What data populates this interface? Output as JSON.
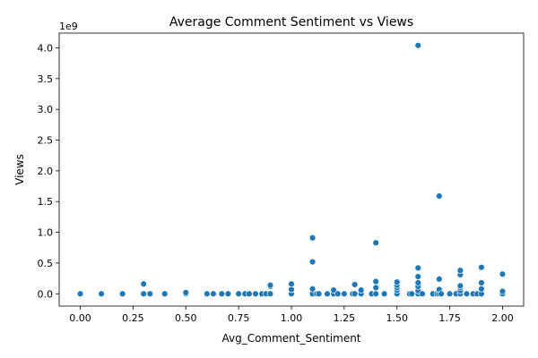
{
  "chart_data": {
    "type": "scatter",
    "title": "Average Comment Sentiment vs Views",
    "xlabel": "Avg_Comment_Sentiment",
    "ylabel": "Views",
    "y_offset_label": "1e9",
    "xlim": [
      -0.1,
      2.1
    ],
    "ylim": [
      -0.2,
      4.24
    ],
    "y_scale_factor": 1000000000,
    "grid": false,
    "legend": "none",
    "colors": {
      "points": "#1f77b4"
    },
    "x_ticks": [
      {
        "value": 0.0,
        "label": "0.00"
      },
      {
        "value": 0.25,
        "label": "0.25"
      },
      {
        "value": 0.5,
        "label": "0.50"
      },
      {
        "value": 0.75,
        "label": "0.75"
      },
      {
        "value": 1.0,
        "label": "1.00"
      },
      {
        "value": 1.25,
        "label": "1.25"
      },
      {
        "value": 1.5,
        "label": "1.50"
      },
      {
        "value": 1.75,
        "label": "1.75"
      },
      {
        "value": 2.0,
        "label": "2.00"
      }
    ],
    "y_ticks": [
      {
        "value": 0.0,
        "label": "0.0"
      },
      {
        "value": 0.5,
        "label": "0.5"
      },
      {
        "value": 1.0,
        "label": "1.0"
      },
      {
        "value": 1.5,
        "label": "1.5"
      },
      {
        "value": 2.0,
        "label": "2.0"
      },
      {
        "value": 2.5,
        "label": "2.5"
      },
      {
        "value": 3.0,
        "label": "3.0"
      },
      {
        "value": 3.5,
        "label": "3.5"
      },
      {
        "value": 4.0,
        "label": "4.0"
      }
    ],
    "points": [
      {
        "x": 0.0,
        "y": 0.0
      },
      {
        "x": 0.1,
        "y": 0.0
      },
      {
        "x": 0.2,
        "y": 0.0
      },
      {
        "x": 0.3,
        "y": 0.0
      },
      {
        "x": 0.3,
        "y": 0.16
      },
      {
        "x": 0.33,
        "y": 0.0
      },
      {
        "x": 0.4,
        "y": 0.0
      },
      {
        "x": 0.5,
        "y": 0.0
      },
      {
        "x": 0.5,
        "y": 0.02
      },
      {
        "x": 0.6,
        "y": 0.0
      },
      {
        "x": 0.63,
        "y": 0.0
      },
      {
        "x": 0.67,
        "y": 0.0
      },
      {
        "x": 0.7,
        "y": 0.0
      },
      {
        "x": 0.75,
        "y": 0.0
      },
      {
        "x": 0.78,
        "y": 0.0
      },
      {
        "x": 0.8,
        "y": 0.0
      },
      {
        "x": 0.83,
        "y": 0.0
      },
      {
        "x": 0.86,
        "y": 0.0
      },
      {
        "x": 0.88,
        "y": 0.0
      },
      {
        "x": 0.9,
        "y": 0.0
      },
      {
        "x": 0.9,
        "y": 0.12
      },
      {
        "x": 0.9,
        "y": 0.14
      },
      {
        "x": 1.0,
        "y": 0.0
      },
      {
        "x": 1.0,
        "y": 0.07
      },
      {
        "x": 1.0,
        "y": 0.16
      },
      {
        "x": 1.1,
        "y": 0.0
      },
      {
        "x": 1.1,
        "y": 0.08
      },
      {
        "x": 1.1,
        "y": 0.52
      },
      {
        "x": 1.1,
        "y": 0.91
      },
      {
        "x": 1.12,
        "y": 0.0
      },
      {
        "x": 1.13,
        "y": 0.0
      },
      {
        "x": 1.17,
        "y": 0.0
      },
      {
        "x": 1.2,
        "y": 0.0
      },
      {
        "x": 1.2,
        "y": 0.06
      },
      {
        "x": 1.22,
        "y": 0.0
      },
      {
        "x": 1.25,
        "y": 0.0
      },
      {
        "x": 1.29,
        "y": 0.0
      },
      {
        "x": 1.3,
        "y": 0.0
      },
      {
        "x": 1.3,
        "y": 0.15
      },
      {
        "x": 1.33,
        "y": 0.0
      },
      {
        "x": 1.33,
        "y": 0.06
      },
      {
        "x": 1.38,
        "y": 0.0
      },
      {
        "x": 1.4,
        "y": 0.0
      },
      {
        "x": 1.4,
        "y": 0.1
      },
      {
        "x": 1.4,
        "y": 0.2
      },
      {
        "x": 1.4,
        "y": 0.83
      },
      {
        "x": 1.44,
        "y": 0.0
      },
      {
        "x": 1.5,
        "y": 0.0
      },
      {
        "x": 1.5,
        "y": 0.06
      },
      {
        "x": 1.5,
        "y": 0.1
      },
      {
        "x": 1.5,
        "y": 0.14
      },
      {
        "x": 1.5,
        "y": 0.19
      },
      {
        "x": 1.56,
        "y": 0.0
      },
      {
        "x": 1.57,
        "y": 0.0
      },
      {
        "x": 1.6,
        "y": 0.0
      },
      {
        "x": 1.6,
        "y": 0.05
      },
      {
        "x": 1.6,
        "y": 0.12
      },
      {
        "x": 1.6,
        "y": 0.18
      },
      {
        "x": 1.6,
        "y": 0.28
      },
      {
        "x": 1.6,
        "y": 0.42
      },
      {
        "x": 1.6,
        "y": 4.04
      },
      {
        "x": 1.62,
        "y": 0.0
      },
      {
        "x": 1.67,
        "y": 0.0
      },
      {
        "x": 1.69,
        "y": 0.0
      },
      {
        "x": 1.7,
        "y": 0.0
      },
      {
        "x": 1.7,
        "y": 0.07
      },
      {
        "x": 1.7,
        "y": 0.24
      },
      {
        "x": 1.7,
        "y": 1.59
      },
      {
        "x": 1.71,
        "y": 0.0
      },
      {
        "x": 1.75,
        "y": 0.0
      },
      {
        "x": 1.78,
        "y": 0.0
      },
      {
        "x": 1.8,
        "y": 0.0
      },
      {
        "x": 1.8,
        "y": 0.05
      },
      {
        "x": 1.8,
        "y": 0.1
      },
      {
        "x": 1.8,
        "y": 0.13
      },
      {
        "x": 1.8,
        "y": 0.31
      },
      {
        "x": 1.8,
        "y": 0.38
      },
      {
        "x": 1.83,
        "y": 0.0
      },
      {
        "x": 1.86,
        "y": 0.0
      },
      {
        "x": 1.88,
        "y": 0.0
      },
      {
        "x": 1.9,
        "y": 0.0
      },
      {
        "x": 1.9,
        "y": 0.08
      },
      {
        "x": 1.9,
        "y": 0.18
      },
      {
        "x": 1.9,
        "y": 0.43
      },
      {
        "x": 2.0,
        "y": 0.0
      },
      {
        "x": 2.0,
        "y": 0.04
      },
      {
        "x": 2.0,
        "y": 0.32
      }
    ]
  }
}
